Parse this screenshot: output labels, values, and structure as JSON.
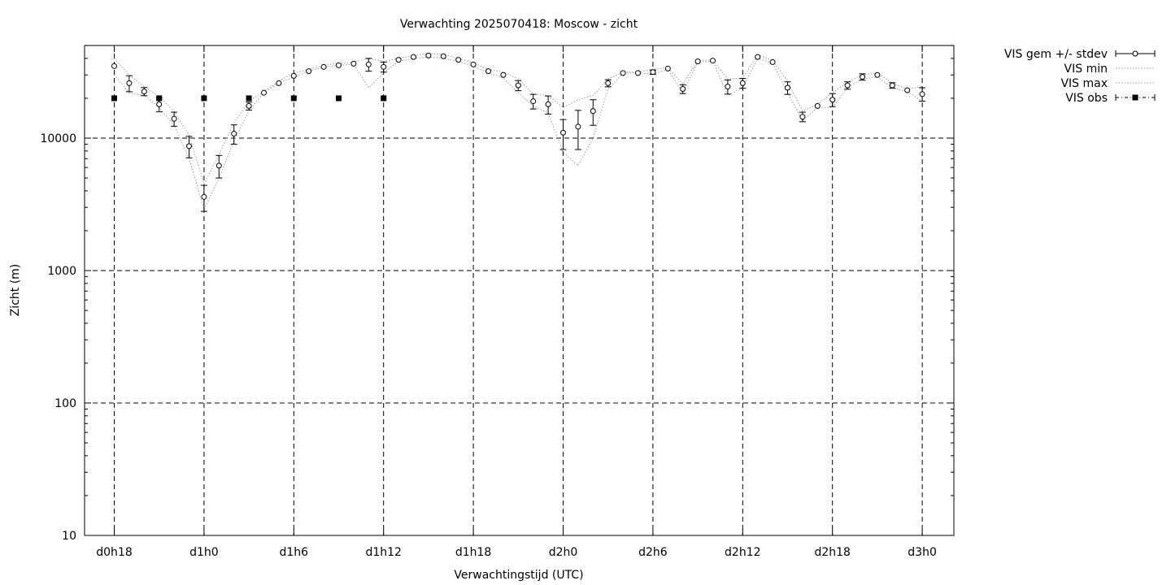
{
  "chart_data": {
    "type": "line",
    "title": "Verwachting 2025070418: Moscow - zicht",
    "xlabel": "Verwachtingstijd (UTC)",
    "ylabel": "Zicht (m)",
    "yscale": "log",
    "ylim": [
      10,
      50000
    ],
    "xlim": [
      -2,
      56
    ],
    "grid": true,
    "legend_position": "outside-top-right",
    "xticks": [
      {
        "x": 0,
        "label": "d0h18"
      },
      {
        "x": 6,
        "label": "d1h0"
      },
      {
        "x": 12,
        "label": "d1h6"
      },
      {
        "x": 18,
        "label": "d1h12"
      },
      {
        "x": 24,
        "label": "d1h18"
      },
      {
        "x": 30,
        "label": "d2h0"
      },
      {
        "x": 36,
        "label": "d2h6"
      },
      {
        "x": 42,
        "label": "d2h12"
      },
      {
        "x": 48,
        "label": "d2h18"
      },
      {
        "x": 54,
        "label": "d3h0"
      }
    ],
    "yticks": [
      {
        "y": 10,
        "label": "10"
      },
      {
        "y": 100,
        "label": "100"
      },
      {
        "y": 1000,
        "label": "1000"
      },
      {
        "y": 10000,
        "label": "10000"
      }
    ],
    "x": [
      0,
      1,
      2,
      3,
      4,
      5,
      6,
      7,
      8,
      9,
      10,
      11,
      12,
      13,
      14,
      15,
      16,
      17,
      18,
      19,
      20,
      21,
      22,
      23,
      24,
      25,
      26,
      27,
      28,
      29,
      30,
      31,
      32,
      33,
      34,
      35,
      36,
      37,
      38,
      39,
      40,
      41,
      42,
      43,
      44,
      45,
      46,
      47,
      48,
      49,
      50,
      51,
      52,
      53,
      54
    ],
    "series": [
      {
        "name": "VIS gem +/- stdev",
        "style": "points-errorbars",
        "values": [
          35000,
          26000,
          22500,
          18000,
          14000,
          8700,
          3600,
          6200,
          10800,
          17500,
          22000,
          26000,
          29500,
          32000,
          34500,
          35500,
          36500,
          36000,
          34500,
          39000,
          41000,
          42000,
          41500,
          39000,
          36000,
          32000,
          30000,
          25000,
          19000,
          18000,
          11000,
          12200,
          16000,
          26000,
          31000,
          31000,
          31500,
          33500,
          23500,
          38000,
          38500,
          24500,
          26000,
          41000,
          37500,
          24000,
          14500,
          17500,
          19500,
          25000,
          29000,
          30000,
          25000,
          23000,
          21500
        ],
        "errors": [
          0,
          3600,
          1600,
          2200,
          1700,
          1600,
          800,
          1200,
          1800,
          1200,
          0,
          0,
          0,
          0,
          0,
          0,
          0,
          4000,
          3000,
          0,
          0,
          0,
          0,
          0,
          0,
          0,
          0,
          2200,
          2400,
          2800,
          2800,
          4000,
          3500,
          1600,
          0,
          0,
          1200,
          0,
          1800,
          0,
          0,
          3000,
          2200,
          0,
          0,
          2600,
          1200,
          0,
          2200,
          1600,
          1600,
          0,
          1200,
          0,
          2500
        ]
      },
      {
        "name": "VIS min",
        "style": "dotted-line",
        "values": [
          30000,
          22000,
          21000,
          17000,
          12500,
          7000,
          2900,
          5000,
          9500,
          16000,
          22000,
          26000,
          29000,
          32000,
          34500,
          35500,
          36000,
          24000,
          31000,
          38000,
          40000,
          41000,
          40000,
          38000,
          35000,
          31000,
          28500,
          22000,
          17500,
          15500,
          7800,
          6200,
          10000,
          23500,
          31000,
          31000,
          30500,
          33000,
          22000,
          37500,
          38000,
          21000,
          24000,
          40000,
          37000,
          22000,
          13500,
          17000,
          17000,
          24000,
          28000,
          29000,
          24000,
          22500,
          19000
        ]
      },
      {
        "name": "VIS max",
        "style": "dotted-line",
        "values": [
          40000,
          30000,
          24500,
          20500,
          16000,
          10500,
          4500,
          7500,
          13000,
          19000,
          22500,
          27000,
          31000,
          33000,
          35500,
          36500,
          37500,
          40000,
          38000,
          40000,
          42000,
          43500,
          43000,
          40000,
          37000,
          33000,
          31500,
          28000,
          21500,
          21000,
          17000,
          19500,
          21000,
          28000,
          31500,
          31500,
          33000,
          34000,
          25500,
          38500,
          39000,
          28000,
          28500,
          42500,
          38500,
          27000,
          16000,
          18000,
          22000,
          26500,
          30000,
          31000,
          26000,
          23500,
          24500
        ]
      },
      {
        "name": "VIS obs",
        "style": "squares",
        "x": [
          0,
          3,
          6,
          9,
          12,
          15,
          18
        ],
        "values": [
          20000,
          20000,
          20000,
          20000,
          20000,
          20000,
          20000
        ]
      }
    ]
  }
}
